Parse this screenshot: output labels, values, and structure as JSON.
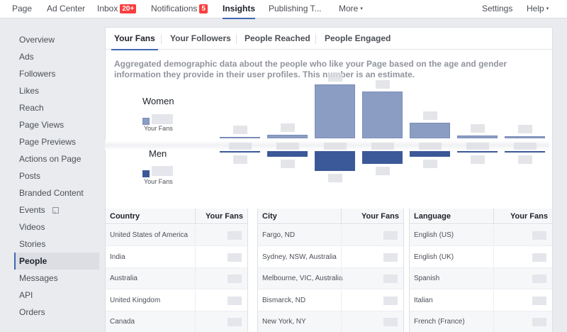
{
  "topnav": {
    "items": [
      {
        "label": "Page"
      },
      {
        "label": "Ad Center"
      },
      {
        "label": "Inbox",
        "badge": "20+"
      },
      {
        "label": "Notifications",
        "badge": "5"
      },
      {
        "label": "Insights"
      },
      {
        "label": "Publishing T..."
      },
      {
        "label": "More",
        "caret": "▾"
      }
    ],
    "right": [
      {
        "label": "Settings"
      },
      {
        "label": "Help",
        "caret": "▾"
      }
    ],
    "active": "Insights"
  },
  "sidebar": {
    "items": [
      {
        "label": "Overview"
      },
      {
        "label": "Ads"
      },
      {
        "label": "Followers"
      },
      {
        "label": "Likes"
      },
      {
        "label": "Reach"
      },
      {
        "label": "Page Views"
      },
      {
        "label": "Page Previews"
      },
      {
        "label": "Actions on Page"
      },
      {
        "label": "Posts"
      },
      {
        "label": "Branded Content"
      },
      {
        "label": "Events"
      },
      {
        "label": "Videos"
      },
      {
        "label": "Stories"
      },
      {
        "label": "People"
      },
      {
        "label": "Messages"
      },
      {
        "label": "API"
      },
      {
        "label": "Orders"
      }
    ],
    "active": "People"
  },
  "tabs": [
    {
      "label": "Your Fans"
    },
    {
      "label": "Your Followers"
    },
    {
      "label": "People Reached"
    },
    {
      "label": "People Engaged"
    }
  ],
  "description": "Aggregated demographic data about the people who like your Page based on the age and gender information they provide in their user profiles. This number is an estimate.",
  "legend": {
    "women": {
      "title": "Women",
      "sub": "Your Fans",
      "color": "#8b9dc3"
    },
    "men": {
      "title": "Men",
      "sub": "Your Fans",
      "color": "#3b5998"
    }
  },
  "chart_data": {
    "type": "bar",
    "series": [
      {
        "name": "Women",
        "values": [
          0.0,
          0.05,
          0.76,
          0.66,
          0.22,
          0.04,
          0.03
        ]
      },
      {
        "name": "Men",
        "values": [
          0.0,
          0.1,
          0.35,
          0.22,
          0.1,
          0.02,
          0.01
        ]
      }
    ]
  },
  "tables": [
    {
      "col1": "Country",
      "col2": "Your Fans",
      "rows": [
        "United States of America",
        "India",
        "Australia",
        "United Kingdom",
        "Canada"
      ]
    },
    {
      "col1": "City",
      "col2": "Your Fans",
      "rows": [
        "Fargo, ND",
        "Sydney, NSW, Australia",
        "Melbourne, VIC, Australia",
        "Bismarck, ND",
        "New York, NY"
      ]
    },
    {
      "col1": "Language",
      "col2": "Your Fans",
      "rows": [
        "English (US)",
        "English (UK)",
        "Spanish",
        "Italian",
        "French (France)"
      ]
    }
  ]
}
